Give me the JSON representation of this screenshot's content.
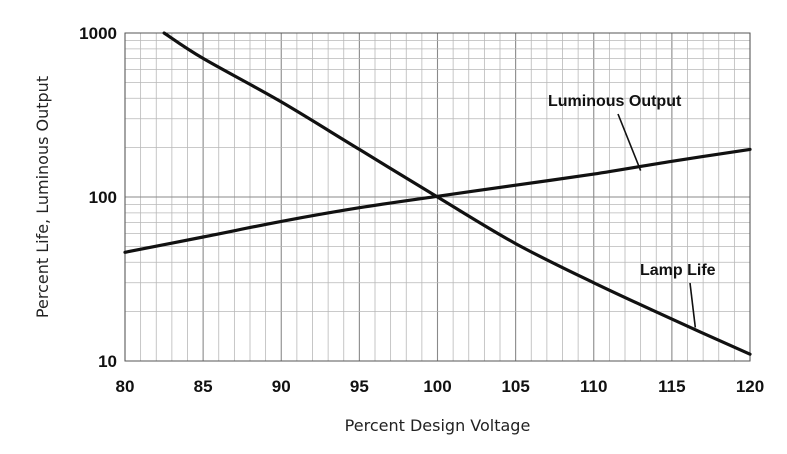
{
  "chart_data": {
    "type": "line",
    "title": "",
    "xlabel": "Percent Design Voltage",
    "ylabel": "Percent Life, Luminous Output",
    "xlim": [
      80,
      120
    ],
    "ylim": [
      10,
      1000
    ],
    "yscale": "log",
    "grid": true,
    "x_ticks": [
      "80",
      "85",
      "90",
      "95",
      "100",
      "105",
      "110",
      "115",
      "120"
    ],
    "y_ticks": [
      "10",
      "100",
      "1000"
    ],
    "series": [
      {
        "name": "Lamp Life",
        "x": [
          82.5,
          85,
          90,
          95,
          100,
          105,
          110,
          115,
          120
        ],
        "y": [
          1000,
          700,
          380,
          195,
          100,
          52,
          30,
          18,
          11
        ]
      },
      {
        "name": "Luminous Output",
        "x": [
          80,
          85,
          90,
          95,
          100,
          105,
          110,
          115,
          120
        ],
        "y": [
          46,
          57,
          71,
          86,
          101,
          118,
          138,
          165,
          195
        ]
      }
    ],
    "annotations": [
      {
        "text": "Luminous Output",
        "series": "Luminous Output",
        "x": 113,
        "y": 145
      },
      {
        "text": "Lamp Life",
        "series": "Lamp Life",
        "x": 116.5,
        "y": 16
      }
    ]
  }
}
